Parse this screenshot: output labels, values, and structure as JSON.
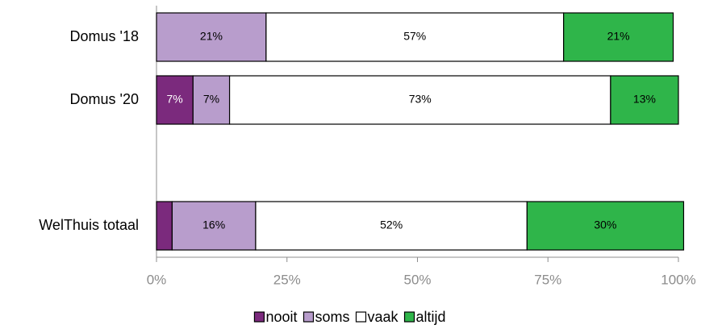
{
  "chart_data": {
    "type": "stacked-barh",
    "categories": [
      "Domus '18",
      "Domus '20",
      null,
      "WelThuis totaal"
    ],
    "series": [
      {
        "name": "nooit",
        "color": "#7b2a7d",
        "label_color": "#ffffff",
        "values": [
          0,
          7,
          null,
          3
        ],
        "value_labels": [
          null,
          "7%",
          null,
          null
        ]
      },
      {
        "name": "soms",
        "color": "#b89dcc",
        "label_color": "#000000",
        "values": [
          21,
          7,
          null,
          16
        ],
        "value_labels": [
          "21%",
          "7%",
          null,
          "16%"
        ]
      },
      {
        "name": "vaak",
        "color": "#ffffff",
        "label_color": "#000000",
        "values": [
          57,
          73,
          null,
          52
        ],
        "value_labels": [
          "57%",
          "73%",
          null,
          "52%"
        ]
      },
      {
        "name": "altijd",
        "color": "#2fb54a",
        "label_color": "#000000",
        "values": [
          21,
          13,
          null,
          30
        ],
        "value_labels": [
          "21%",
          "13%",
          null,
          "30%"
        ]
      }
    ],
    "xlim": [
      0,
      100
    ],
    "xticks": [
      {
        "value": 0,
        "label": "0%"
      },
      {
        "value": 25,
        "label": "25%"
      },
      {
        "value": 50,
        "label": "50%"
      },
      {
        "value": 75,
        "label": "75%"
      },
      {
        "value": 100,
        "label": "100%"
      }
    ],
    "legend": "bottom"
  }
}
